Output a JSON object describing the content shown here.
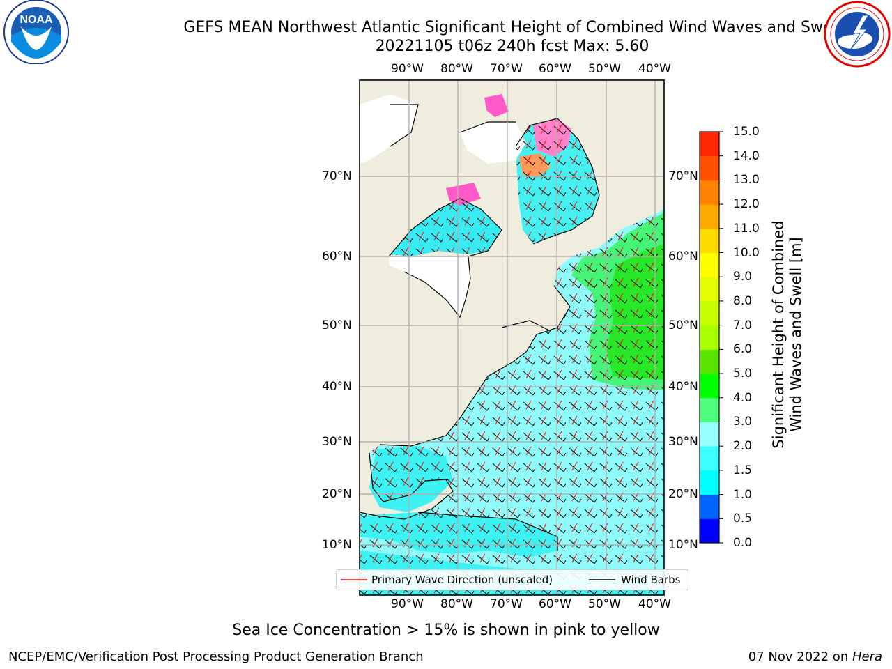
{
  "header": {
    "title_line1": "GEFS MEAN Northwest Atlantic Significant Height of Combined Wind Waves and Swell",
    "title_line2": "20221105 t06z 240h fcst   Max: 5.60"
  },
  "logos": {
    "left": {
      "text": "NOAA",
      "ring_text": "NATIONAL OCEANIC AND ATMOSPHERIC ADMINISTRATION · U.S. DEPARTMENT OF COMMERCE",
      "icon": "noaa-logo"
    },
    "right": {
      "ring_text": "NATIONAL WEATHER SERVICE",
      "icon": "nws-logo"
    }
  },
  "map": {
    "lon_labels": [
      "90°W",
      "80°W",
      "70°W",
      "60°W",
      "50°W",
      "40°W"
    ],
    "lat_labels": [
      "70°N",
      "60°N",
      "50°N",
      "40°N",
      "30°N",
      "20°N",
      "10°N"
    ],
    "colors": {
      "land": "#efedde",
      "ice_free_white": "#ffffff",
      "coast": "#000000",
      "grid": "#b0b0b0"
    }
  },
  "legend": {
    "items": [
      {
        "label": "Primary Wave Direction (unscaled)",
        "color": "#ff0000"
      },
      {
        "label": "Wind Barbs",
        "color": "#000000"
      }
    ]
  },
  "colorbar": {
    "label_line1": "Significant Height of Combined",
    "label_line2": "Wind Waves and Swell [m]",
    "ticks": [
      "0.0",
      "0.5",
      "1.0",
      "1.5",
      "2.0",
      "3.0",
      "4.0",
      "5.0",
      "6.0",
      "7.0",
      "8.0",
      "9.0",
      "10.0",
      "11.0",
      "12.0",
      "13.0",
      "14.0",
      "15.0"
    ],
    "colors": [
      "#0000ff",
      "#0064ff",
      "#00ffff",
      "#3cffff",
      "#96ffff",
      "#50ff80",
      "#00ff00",
      "#5ae600",
      "#aaff00",
      "#c8ff00",
      "#e6ff00",
      "#ffff00",
      "#ffdc00",
      "#ffaa00",
      "#ff8200",
      "#ff5000",
      "#ff2800",
      "#ff0000"
    ]
  },
  "footer": {
    "note": "Sea Ice Concentration > 15% is shown in pink to yellow",
    "branch": "NCEP/EMC/Verification Post Processing Product Generation Branch",
    "date": "07 Nov 2022 on ",
    "host": "Hera"
  }
}
